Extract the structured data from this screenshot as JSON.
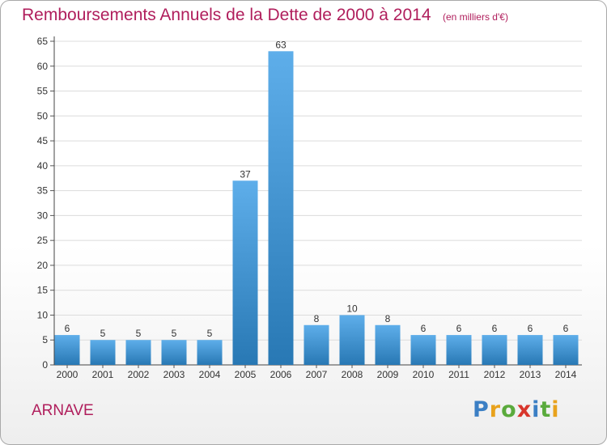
{
  "title": "Remboursements Annuels de la Dette de 2000 à 2014",
  "unit_label": "(en milliers d'€)",
  "commune": "ARNAVE",
  "logo": {
    "letters": [
      "P",
      "r",
      "o",
      "x",
      "i",
      "t",
      "i"
    ],
    "colors": [
      "#3b7fc4",
      "#e8a21c",
      "#5aaa3c",
      "#d8362c",
      "#3b7fc4",
      "#5aaa3c",
      "#e8a21c"
    ]
  },
  "colors": {
    "title": "#b01e5c",
    "bar_top": "#5eaeea",
    "bar_bottom": "#2878b4"
  },
  "chart_data": {
    "type": "bar",
    "categories": [
      "2000",
      "2001",
      "2002",
      "2003",
      "2004",
      "2005",
      "2006",
      "2007",
      "2008",
      "2009",
      "2010",
      "2011",
      "2012",
      "2013",
      "2014"
    ],
    "values": [
      6,
      5,
      5,
      5,
      5,
      37,
      63,
      8,
      10,
      8,
      6,
      6,
      6,
      6,
      6
    ],
    "title": "Remboursements Annuels de la Dette de 2000 à 2014",
    "ylabel": "(en milliers d'€)",
    "xlabel": "",
    "ylim": [
      0,
      65
    ],
    "yticks": [
      0,
      5,
      10,
      15,
      20,
      25,
      30,
      35,
      40,
      45,
      50,
      55,
      60,
      65
    ],
    "grid": true,
    "data_labels": true
  }
}
